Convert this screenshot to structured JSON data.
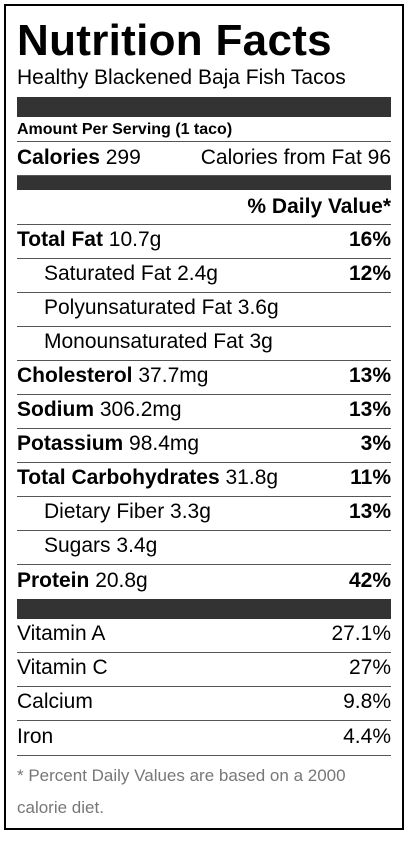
{
  "title": "Nutrition Facts",
  "recipe": "Healthy Blackened Baja Fish Tacos",
  "serving": "Amount Per Serving (1 taco)",
  "calories": {
    "label": "Calories",
    "value": "299",
    "fat_label": "Calories from Fat",
    "fat_value": "96"
  },
  "dv_header": "% Daily Value*",
  "nutrients": [
    {
      "label": "Total Fat",
      "amount": "10.7g",
      "pct": "16%",
      "bold": true,
      "indent": false
    },
    {
      "label": "Saturated Fat",
      "amount": "2.4g",
      "pct": "12%",
      "bold": false,
      "indent": true
    },
    {
      "label": "Polyunsaturated Fat",
      "amount": "3.6g",
      "pct": "",
      "bold": false,
      "indent": true
    },
    {
      "label": "Monounsaturated Fat",
      "amount": "3g",
      "pct": "",
      "bold": false,
      "indent": true
    },
    {
      "label": "Cholesterol",
      "amount": "37.7mg",
      "pct": "13%",
      "bold": true,
      "indent": false
    },
    {
      "label": "Sodium",
      "amount": "306.2mg",
      "pct": "13%",
      "bold": true,
      "indent": false
    },
    {
      "label": "Potassium",
      "amount": "98.4mg",
      "pct": "3%",
      "bold": true,
      "indent": false
    },
    {
      "label": "Total Carbohydrates",
      "amount": "31.8g",
      "pct": "11%",
      "bold": true,
      "indent": false
    },
    {
      "label": "Dietary Fiber",
      "amount": "3.3g",
      "pct": "13%",
      "bold": false,
      "indent": true
    },
    {
      "label": "Sugars",
      "amount": "3.4g",
      "pct": "",
      "bold": false,
      "indent": true
    },
    {
      "label": "Protein",
      "amount": "20.8g",
      "pct": "42%",
      "bold": true,
      "indent": false
    }
  ],
  "vitamins": [
    {
      "label": "Vitamin A",
      "pct": "27.1%"
    },
    {
      "label": "Vitamin C",
      "pct": "27%"
    },
    {
      "label": "Calcium",
      "pct": "9.8%"
    },
    {
      "label": "Iron",
      "pct": "4.4%"
    }
  ],
  "footnote": "* Percent Daily Values are based on a 2000 calorie diet."
}
